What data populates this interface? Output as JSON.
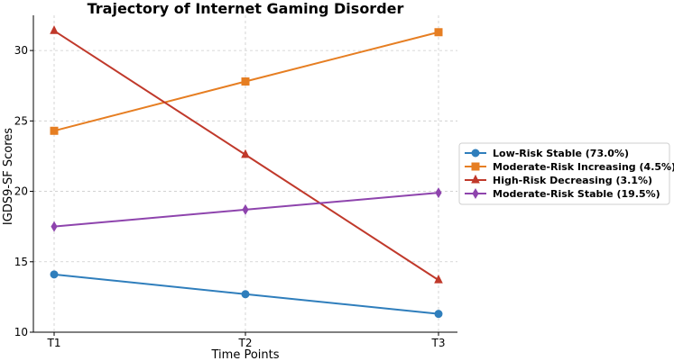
{
  "chart_data": {
    "type": "line",
    "title": "Trajectory of Internet Gaming Disorder",
    "xlabel": "Time Points",
    "ylabel": "IGDS9-SF Scores",
    "categories": [
      "T1",
      "T2",
      "T3"
    ],
    "ylim": [
      10,
      32.5
    ],
    "yticks": [
      10,
      15,
      20,
      25,
      30
    ],
    "grid": true,
    "legend_position": "right",
    "series": [
      {
        "name": "Low-Risk Stable (73.0%)",
        "values": [
          14.1,
          12.7,
          11.3
        ],
        "color": "#2f7ebc",
        "marker": "circle"
      },
      {
        "name": "Moderate-Risk Increasing (4.5%)",
        "values": [
          24.3,
          27.8,
          31.3
        ],
        "color": "#e67e22",
        "marker": "square"
      },
      {
        "name": "High-Risk Decreasing (3.1%)",
        "values": [
          31.4,
          22.6,
          13.7
        ],
        "color": "#c0392b",
        "marker": "triangle"
      },
      {
        "name": "Moderate-Risk Stable (19.5%)",
        "values": [
          17.5,
          18.7,
          19.9
        ],
        "color": "#8e44ad",
        "marker": "diamond"
      }
    ]
  }
}
